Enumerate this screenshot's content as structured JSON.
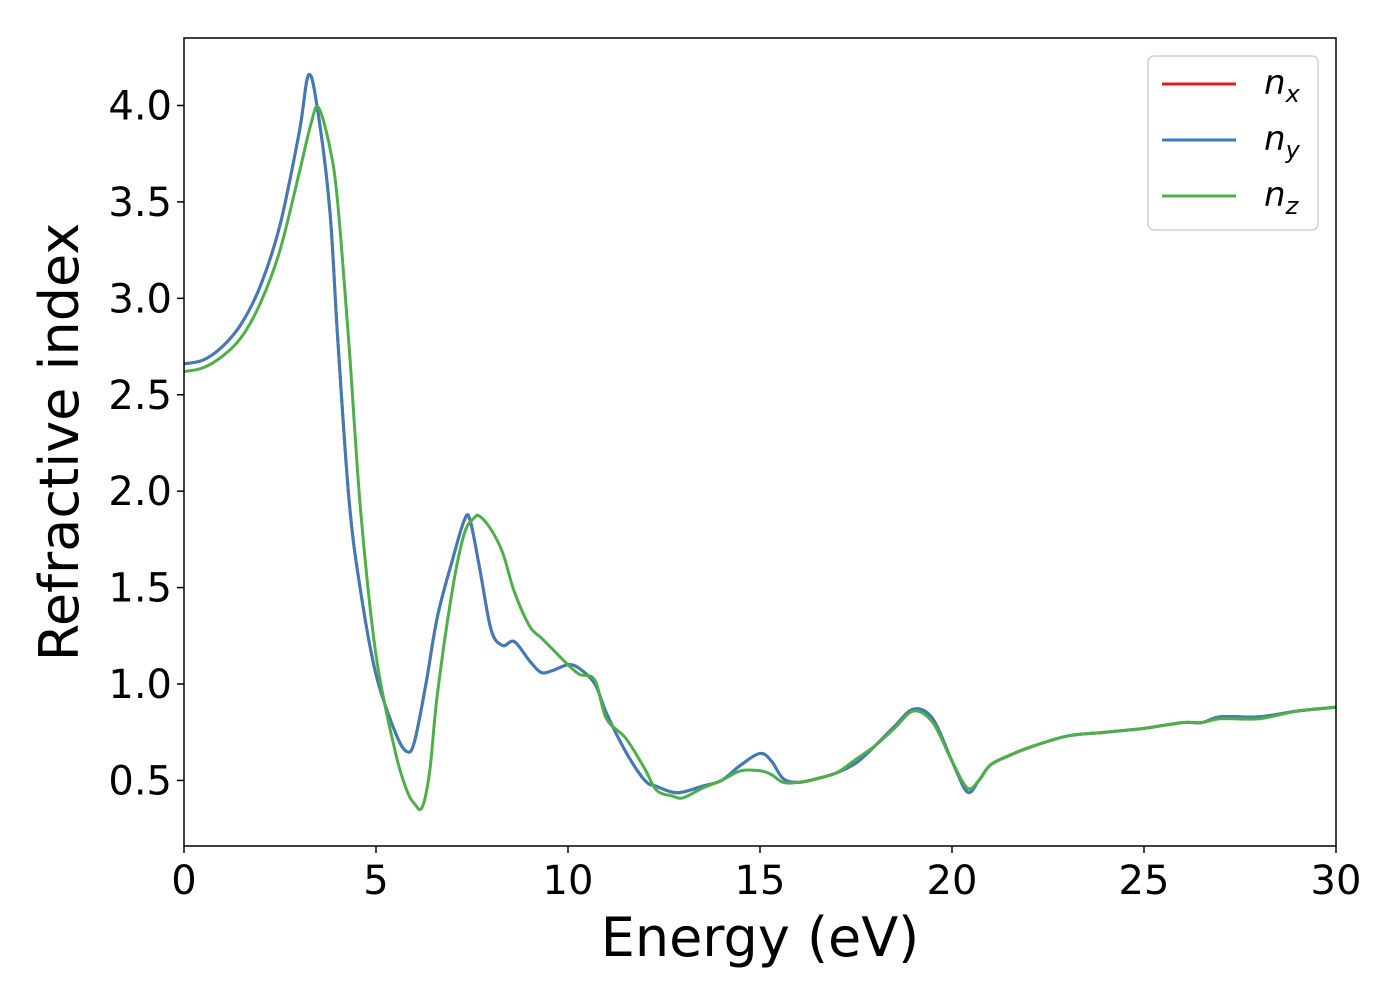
{
  "chart_data": {
    "type": "line",
    "xlabel": "Energy (eV)",
    "ylabel": "Refractive index",
    "xlim": [
      0,
      30
    ],
    "ylim": [
      0.16,
      4.35
    ],
    "xticks": [
      "0",
      "5",
      "10",
      "15",
      "20",
      "25",
      "30"
    ],
    "xtick_values": [
      0,
      5,
      10,
      15,
      20,
      25,
      30
    ],
    "yticks": [
      "0.5",
      "1.0",
      "1.5",
      "2.0",
      "2.5",
      "3.0",
      "3.5",
      "4.0"
    ],
    "ytick_values": [
      0.5,
      1.0,
      1.5,
      2.0,
      2.5,
      3.0,
      3.5,
      4.0
    ],
    "grid": false,
    "legend_position": "top-right",
    "series": [
      {
        "name": "n",
        "subscript": "x",
        "color": "#e41a1c",
        "x": [
          0,
          0.5,
          1,
          1.5,
          2,
          2.5,
          3,
          3.25,
          3.5,
          3.8,
          4.0,
          4.3,
          4.6,
          5.0,
          5.5,
          5.8,
          6.0,
          6.3,
          6.6,
          7.0,
          7.3,
          7.45,
          7.7,
          8.0,
          8.3,
          8.6,
          9.0,
          9.3,
          9.6,
          10.0,
          10.3,
          10.7,
          11.0,
          11.5,
          12.0,
          12.3,
          12.7,
          13.0,
          13.5,
          14.0,
          14.5,
          15.0,
          15.3,
          15.6,
          16.0,
          16.5,
          17.0,
          17.5,
          18.0,
          18.5,
          19.0,
          19.5,
          20.0,
          20.4,
          20.7,
          21.0,
          21.5,
          22.0,
          23.0,
          24.0,
          25.0,
          26.0,
          26.5,
          27.0,
          28.0,
          29.0,
          30.0
        ],
        "values": [
          2.66,
          2.68,
          2.75,
          2.87,
          3.07,
          3.38,
          3.86,
          4.16,
          3.95,
          3.45,
          2.8,
          1.95,
          1.48,
          1.05,
          0.75,
          0.65,
          0.7,
          1.0,
          1.35,
          1.65,
          1.85,
          1.85,
          1.6,
          1.28,
          1.2,
          1.22,
          1.12,
          1.06,
          1.07,
          1.1,
          1.08,
          1.0,
          0.85,
          0.65,
          0.5,
          0.47,
          0.44,
          0.44,
          0.47,
          0.5,
          0.58,
          0.64,
          0.6,
          0.51,
          0.49,
          0.51,
          0.54,
          0.59,
          0.68,
          0.78,
          0.87,
          0.82,
          0.6,
          0.44,
          0.5,
          0.58,
          0.63,
          0.67,
          0.73,
          0.75,
          0.77,
          0.8,
          0.8,
          0.83,
          0.83,
          0.86,
          0.88
        ]
      },
      {
        "name": "n",
        "subscript": "y",
        "color": "#3e7cb8",
        "x": [
          0,
          0.5,
          1,
          1.5,
          2,
          2.5,
          3,
          3.25,
          3.5,
          3.8,
          4.0,
          4.3,
          4.6,
          5.0,
          5.5,
          5.8,
          6.0,
          6.3,
          6.6,
          7.0,
          7.3,
          7.45,
          7.7,
          8.0,
          8.3,
          8.6,
          9.0,
          9.3,
          9.6,
          10.0,
          10.3,
          10.7,
          11.0,
          11.5,
          12.0,
          12.3,
          12.7,
          13.0,
          13.5,
          14.0,
          14.5,
          15.0,
          15.3,
          15.6,
          16.0,
          16.5,
          17.0,
          17.5,
          18.0,
          18.5,
          19.0,
          19.5,
          20.0,
          20.4,
          20.7,
          21.0,
          21.5,
          22.0,
          23.0,
          24.0,
          25.0,
          26.0,
          26.5,
          27.0,
          28.0,
          29.0,
          30.0
        ],
        "values": [
          2.66,
          2.68,
          2.75,
          2.87,
          3.07,
          3.38,
          3.86,
          4.16,
          3.95,
          3.45,
          2.8,
          1.95,
          1.48,
          1.05,
          0.75,
          0.65,
          0.7,
          1.0,
          1.35,
          1.65,
          1.85,
          1.85,
          1.6,
          1.28,
          1.2,
          1.22,
          1.12,
          1.06,
          1.07,
          1.1,
          1.08,
          1.0,
          0.85,
          0.65,
          0.5,
          0.47,
          0.44,
          0.44,
          0.47,
          0.5,
          0.58,
          0.64,
          0.6,
          0.51,
          0.49,
          0.51,
          0.54,
          0.59,
          0.68,
          0.78,
          0.87,
          0.82,
          0.6,
          0.44,
          0.5,
          0.58,
          0.63,
          0.67,
          0.73,
          0.75,
          0.77,
          0.8,
          0.8,
          0.83,
          0.83,
          0.86,
          0.88
        ]
      },
      {
        "name": "n",
        "subscript": "z",
        "color": "#4daf4a",
        "x": [
          0,
          0.5,
          1,
          1.5,
          2,
          2.5,
          3,
          3.3,
          3.5,
          3.8,
          4.0,
          4.3,
          4.6,
          5.0,
          5.5,
          5.8,
          6.0,
          6.2,
          6.4,
          6.6,
          7.0,
          7.3,
          7.55,
          7.7,
          8.0,
          8.3,
          8.6,
          9.0,
          9.3,
          9.6,
          10.0,
          10.3,
          10.7,
          11.0,
          11.5,
          12.0,
          12.3,
          12.7,
          13.0,
          13.5,
          14.0,
          14.5,
          15.0,
          15.3,
          15.6,
          16.0,
          16.5,
          17.0,
          17.5,
          18.0,
          18.5,
          19.0,
          19.5,
          20.0,
          20.4,
          20.7,
          21.0,
          21.5,
          22.0,
          23.0,
          24.0,
          25.0,
          26.0,
          26.5,
          27.0,
          28.0,
          29.0,
          30.0
        ],
        "values": [
          2.62,
          2.64,
          2.7,
          2.8,
          2.98,
          3.25,
          3.65,
          3.9,
          3.99,
          3.78,
          3.5,
          2.75,
          1.9,
          1.15,
          0.65,
          0.45,
          0.38,
          0.36,
          0.55,
          0.95,
          1.5,
          1.78,
          1.86,
          1.87,
          1.8,
          1.68,
          1.48,
          1.3,
          1.24,
          1.18,
          1.1,
          1.05,
          1.02,
          0.82,
          0.72,
          0.56,
          0.45,
          0.42,
          0.41,
          0.46,
          0.5,
          0.55,
          0.55,
          0.53,
          0.49,
          0.49,
          0.51,
          0.54,
          0.61,
          0.68,
          0.77,
          0.86,
          0.8,
          0.6,
          0.46,
          0.5,
          0.58,
          0.63,
          0.67,
          0.73,
          0.75,
          0.77,
          0.8,
          0.8,
          0.82,
          0.82,
          0.86,
          0.88
        ]
      }
    ]
  }
}
